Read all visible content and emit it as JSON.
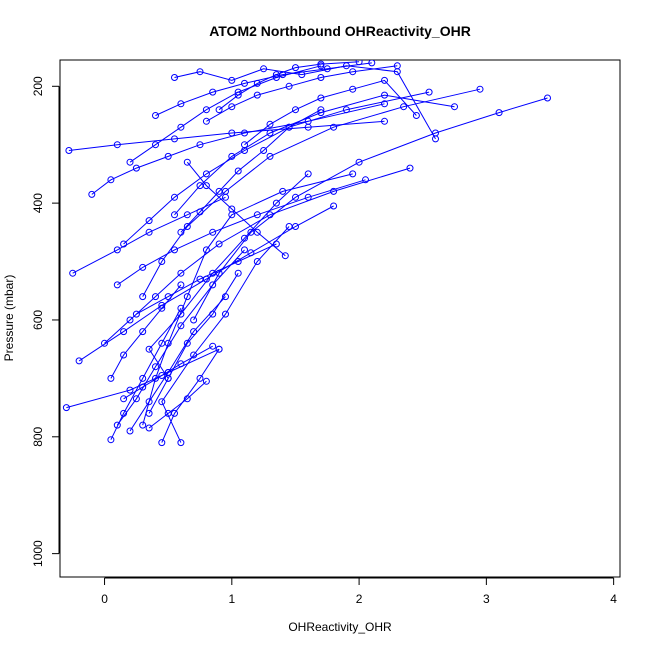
{
  "chart_data": {
    "type": "line",
    "title": "ATOM2 Northbound OHReactivity_OHR",
    "xlabel": "OHReactivity_OHR",
    "ylabel": "Pressure (mbar)",
    "xlim": [
      -0.35,
      4.05
    ],
    "ylim": [
      1040,
      155
    ],
    "y_reversed": true,
    "x_ticks": [
      0,
      1,
      2,
      3,
      4
    ],
    "x_tick_labels": [
      "0",
      "1",
      "2",
      "3",
      "4"
    ],
    "y_ticks": [
      200,
      400,
      600,
      800,
      1000
    ],
    "y_tick_labels": [
      "200",
      "400",
      "600",
      "800",
      "1000"
    ],
    "grid": false,
    "legend": "none",
    "color": "#0000ff",
    "marker": "open-circle",
    "series": [
      {
        "x": [
          0.05,
          0.15,
          0.3,
          0.45,
          0.6
        ],
        "y": [
          805,
          760,
          700,
          640,
          580
        ]
      },
      {
        "x": [
          0.2,
          0.35,
          0.5,
          0.7,
          0.95
        ],
        "y": [
          790,
          740,
          690,
          620,
          560
        ]
      },
      {
        "x": [
          0.1,
          0.25,
          0.4,
          0.6,
          0.85,
          1.1
        ],
        "y": [
          780,
          735,
          680,
          610,
          540,
          480
        ]
      },
      {
        "x": [
          0.35,
          0.5,
          0.65,
          0.85,
          1.05
        ],
        "y": [
          760,
          700,
          640,
          590,
          520
        ]
      },
      {
        "x": [
          0.45,
          0.55,
          0.75,
          0.9
        ],
        "y": [
          810,
          760,
          700,
          650
        ]
      },
      {
        "x": [
          0.6,
          0.45,
          0.7,
          0.95,
          1.2,
          1.45
        ],
        "y": [
          810,
          740,
          660,
          590,
          500,
          440
        ]
      },
      {
        "x": [
          -0.3,
          0.2,
          0.5,
          0.9
        ],
        "y": [
          750,
          720,
          690,
          650
        ]
      },
      {
        "x": [
          0.3,
          0.4,
          0.5,
          0.65,
          0.8,
          1.0,
          1.4,
          1.95
        ],
        "y": [
          780,
          700,
          640,
          560,
          480,
          420,
          380,
          350
        ]
      },
      {
        "x": [
          0.5,
          0.35,
          0.6,
          0.85,
          1.1,
          1.35,
          1.6
        ],
        "y": [
          700,
          650,
          590,
          520,
          460,
          400,
          350
        ]
      },
      {
        "x": [
          0.0,
          0.2,
          0.4,
          0.6,
          0.9,
          1.3,
          1.8,
          2.4
        ],
        "y": [
          640,
          600,
          560,
          520,
          470,
          420,
          380,
          340
        ]
      },
      {
        "x": [
          -0.25,
          0.1,
          0.35,
          0.65,
          0.95
        ],
        "y": [
          520,
          480,
          450,
          420,
          390
        ]
      },
      {
        "x": [
          -0.1,
          0.05,
          0.25,
          0.5,
          0.75,
          1.1,
          1.6,
          2.2
        ],
        "y": [
          385,
          360,
          340,
          320,
          300,
          280,
          260,
          230
        ]
      },
      {
        "x": [
          -0.28,
          0.1,
          0.55,
          1.0,
          1.6,
          2.2
        ],
        "y": [
          310,
          300,
          290,
          280,
          270,
          260
        ]
      },
      {
        "x": [
          0.15,
          0.35,
          0.55,
          0.8,
          1.1,
          1.45,
          1.9,
          2.55
        ],
        "y": [
          470,
          430,
          390,
          350,
          310,
          270,
          240,
          210
        ]
      },
      {
        "x": [
          0.3,
          0.45,
          0.65,
          0.95,
          1.3,
          1.8,
          2.35,
          2.95
        ],
        "y": [
          560,
          500,
          440,
          380,
          320,
          270,
          235,
          205
        ]
      },
      {
        "x": [
          0.7,
          0.9,
          1.15,
          1.5,
          2.0,
          2.6,
          3.1,
          3.48
        ],
        "y": [
          600,
          520,
          450,
          390,
          330,
          280,
          245,
          220
        ]
      },
      {
        "x": [
          0.55,
          0.75,
          1.0,
          1.3,
          1.7,
          2.2,
          2.75
        ],
        "y": [
          420,
          370,
          320,
          280,
          245,
          215,
          235
        ]
      },
      {
        "x": [
          0.2,
          0.4,
          0.6,
          0.8,
          1.05,
          1.35,
          1.7
        ],
        "y": [
          330,
          300,
          270,
          240,
          210,
          185,
          165
        ]
      },
      {
        "x": [
          0.4,
          0.6,
          0.85,
          1.1,
          1.4,
          1.75,
          2.1
        ],
        "y": [
          250,
          230,
          210,
          195,
          180,
          170,
          160
        ]
      },
      {
        "x": [
          0.55,
          0.75,
          1.0,
          1.25,
          1.55,
          1.9,
          2.3,
          2.6
        ],
        "y": [
          185,
          175,
          190,
          170,
          180,
          165,
          175,
          290
        ]
      },
      {
        "x": [
          0.8,
          1.0,
          1.2,
          1.45,
          1.7,
          1.95,
          2.3
        ],
        "y": [
          260,
          235,
          215,
          200,
          185,
          175,
          165
        ]
      },
      {
        "x": [
          1.1,
          1.3,
          1.5,
          1.7,
          1.95,
          2.2,
          2.45
        ],
        "y": [
          300,
          265,
          240,
          220,
          205,
          190,
          250
        ]
      },
      {
        "x": [
          0.1,
          0.3,
          0.55,
          0.85,
          1.2,
          1.6,
          2.05
        ],
        "y": [
          540,
          510,
          480,
          450,
          420,
          390,
          360
        ]
      },
      {
        "x": [
          -0.2,
          0.15,
          0.45,
          0.8,
          1.15,
          1.5,
          1.8
        ],
        "y": [
          670,
          620,
          575,
          530,
          485,
          440,
          405
        ]
      },
      {
        "x": [
          0.65,
          0.8,
          1.0,
          1.2,
          1.42
        ],
        "y": [
          330,
          370,
          410,
          450,
          490
        ]
      },
      {
        "x": [
          0.25,
          0.5,
          0.75,
          1.05,
          1.35
        ],
        "y": [
          590,
          560,
          530,
          500,
          470
        ]
      },
      {
        "x": [
          0.05,
          0.15,
          0.3,
          0.45,
          0.6
        ],
        "y": [
          700,
          660,
          620,
          580,
          540
        ]
      },
      {
        "x": [
          0.35,
          0.5,
          0.65,
          0.8
        ],
        "y": [
          785,
          760,
          735,
          705
        ]
      },
      {
        "x": [
          0.15,
          0.3,
          0.45,
          0.6,
          0.85
        ],
        "y": [
          735,
          715,
          695,
          675,
          645
        ]
      },
      {
        "x": [
          0.6,
          0.75,
          0.9,
          1.05,
          1.25,
          1.45,
          1.7
        ],
        "y": [
          450,
          415,
          380,
          345,
          310,
          270,
          240
        ]
      },
      {
        "x": [
          0.9,
          1.05,
          1.2,
          1.35,
          1.5,
          1.7,
          2.0
        ],
        "y": [
          240,
          215,
          195,
          180,
          168,
          162,
          158
        ]
      }
    ]
  }
}
